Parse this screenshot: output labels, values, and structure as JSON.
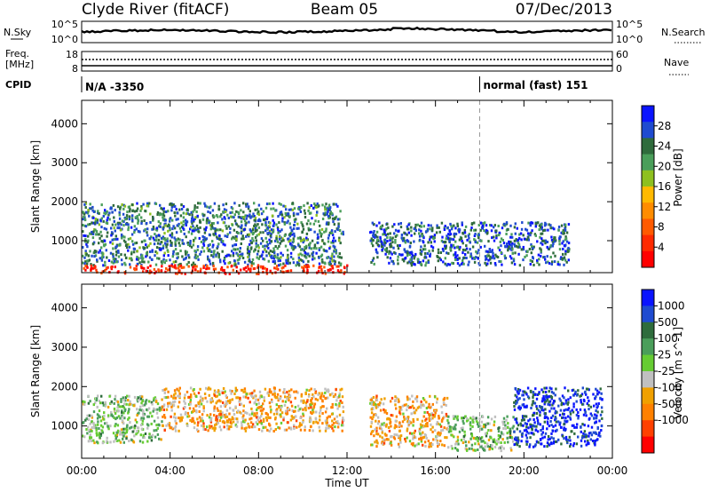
{
  "header": {
    "station": "Clyde River (fitACF)",
    "beam": "Beam 05",
    "date": "07/Dec/2013"
  },
  "summary_panels": {
    "nsky": {
      "left_label": "N.Sky",
      "right_label": "N.Search",
      "left_ticks": [
        "10^5",
        "10^0"
      ],
      "right_ticks": [
        "10^5",
        "10^0"
      ]
    },
    "freq": {
      "left_label_1": "Freq.",
      "left_label_2": "[MHz]",
      "right_label": "Nave",
      "left_ticks": [
        "18",
        "8"
      ],
      "right_ticks": [
        "60",
        "0"
      ]
    },
    "cpid": {
      "label": "CPID",
      "segments": [
        {
          "text": "N/A -3350",
          "start_hour": 0
        },
        {
          "text": "normal (fast) 151",
          "start_hour": 18
        }
      ]
    }
  },
  "colors": {
    "power": [
      "#0a14ff",
      "#1f4bd0",
      "#2f6b3c",
      "#4a9e5a",
      "#8ec01f",
      "#ffb900",
      "#ff8c00",
      "#ff5a00",
      "#ff2a00",
      "#ff0000"
    ],
    "velocity": [
      "#0a14ff",
      "#1f4bd0",
      "#2e6c3c",
      "#4a9e5a",
      "#66cc33",
      "#c0c0c0",
      "#f0a000",
      "#ff8000",
      "#ff4000",
      "#ff0000"
    ]
  },
  "chart_data": [
    {
      "type": "heatmap",
      "title": "",
      "xlabel": "Time UT",
      "ylabel": "Slant Range [km]",
      "xlim": [
        0,
        24
      ],
      "ylim": [
        180,
        4600
      ],
      "x_ticks": [
        "00:00",
        "04:00",
        "08:00",
        "12:00",
        "16:00",
        "20:00",
        "00:00"
      ],
      "y_ticks": [
        1000,
        2000,
        3000,
        4000
      ],
      "colorbar": {
        "label": "Power [dB]",
        "ticks": [
          4,
          8,
          12,
          16,
          20,
          24,
          28
        ],
        "range": [
          0,
          32
        ]
      },
      "regions": [
        {
          "x_start": 0.0,
          "x_end": 11.8,
          "y_low": 400,
          "y_high": 2000,
          "value": 24
        },
        {
          "x_start": 13.0,
          "x_end": 22.0,
          "y_low": 400,
          "y_high": 1500,
          "value": 26
        },
        {
          "x_start": 0.0,
          "x_end": 12.0,
          "y_low": 180,
          "y_high": 400,
          "value": 4
        }
      ]
    },
    {
      "type": "heatmap",
      "title": "",
      "xlabel": "Time UT",
      "ylabel": "Slant Range [km]",
      "xlim": [
        0,
        24
      ],
      "ylim": [
        180,
        4600
      ],
      "x_ticks": [
        "00:00",
        "04:00",
        "08:00",
        "12:00",
        "16:00",
        "20:00",
        "00:00"
      ],
      "y_ticks": [
        1000,
        2000,
        3000,
        4000
      ],
      "colorbar": {
        "label": "Velocity [m s^-1]",
        "ticks": [
          "1000",
          "500",
          "100",
          "25",
          "-25",
          "-100",
          "-500",
          "-1000"
        ],
        "range": [
          -1000,
          1000
        ]
      },
      "regions": [
        {
          "x_start": 0.0,
          "x_end": 3.6,
          "y_low": 600,
          "y_high": 1800,
          "value": 100
        },
        {
          "x_start": 3.6,
          "x_end": 11.8,
          "y_low": 900,
          "y_high": 2000,
          "value": -300
        },
        {
          "x_start": 13.0,
          "x_end": 16.5,
          "y_low": 500,
          "y_high": 1800,
          "value": -300
        },
        {
          "x_start": 16.5,
          "x_end": 19.5,
          "y_low": 400,
          "y_high": 1300,
          "value": 100
        },
        {
          "x_start": 19.5,
          "x_end": 23.5,
          "y_low": 500,
          "y_high": 2000,
          "value": 800
        }
      ]
    }
  ]
}
